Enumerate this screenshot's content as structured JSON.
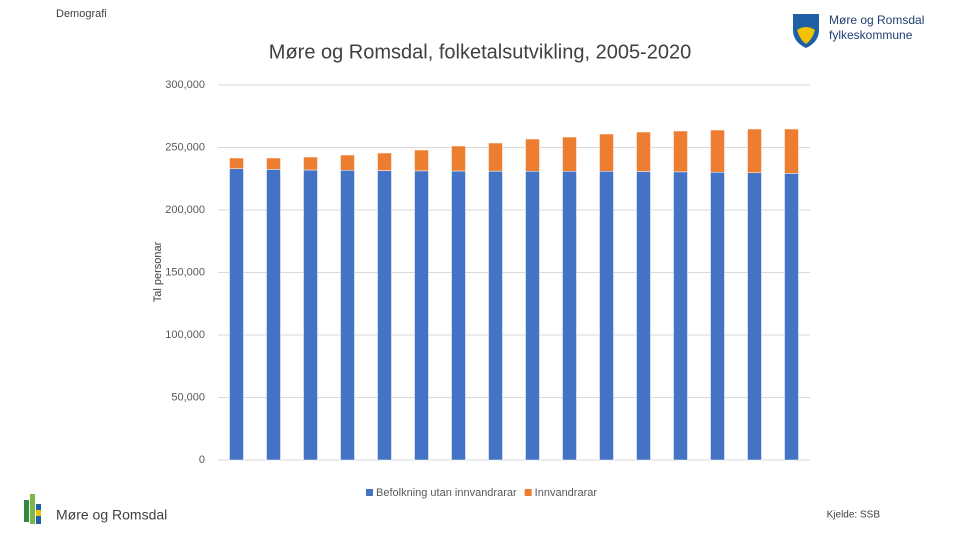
{
  "header": {
    "section": "Demografi",
    "logo_line1": "Møre og Romsdal",
    "logo_line2": "fylkeskommune"
  },
  "footer": {
    "brand": "Møre og Romsdal",
    "source": "Kjelde: SSB"
  },
  "chart_data": {
    "type": "stacked_bar",
    "title": "Møre og Romsdal, folketalsutvikling, 2005-2020",
    "y_label": "Tal personar",
    "categories": [
      null,
      null,
      null,
      null,
      null,
      null,
      null,
      null,
      null,
      null,
      null,
      null,
      null,
      null,
      null,
      null
    ],
    "series": [
      {
        "name": "Befolkning utan innvandrarar",
        "color": "#4472c4",
        "values": [
          233000,
          232500,
          232000,
          231800,
          231500,
          231300,
          231200,
          231100,
          231000,
          231000,
          231000,
          230800,
          230500,
          230200,
          229800,
          229300
        ]
      },
      {
        "name": "Innvandrarar",
        "color": "#ed7d31",
        "values": [
          8600,
          9100,
          10400,
          12200,
          14100,
          16700,
          20000,
          22500,
          25800,
          27400,
          29800,
          31600,
          32700,
          33800,
          35000,
          35500
        ]
      }
    ],
    "ylim": [
      0,
      300000
    ],
    "yticks": [
      0,
      {
        "value": 50000,
        "label": "50,000"
      },
      {
        "value": 100000,
        "label": "100,000"
      },
      {
        "value": 150000,
        "label": "150,000"
      },
      {
        "value": 200000,
        "label": "200,000"
      },
      {
        "value": 250000,
        "label": "250,000"
      },
      {
        "value": 300000,
        "label": "300,000"
      }
    ],
    "grid": true,
    "legend": "bottom"
  }
}
